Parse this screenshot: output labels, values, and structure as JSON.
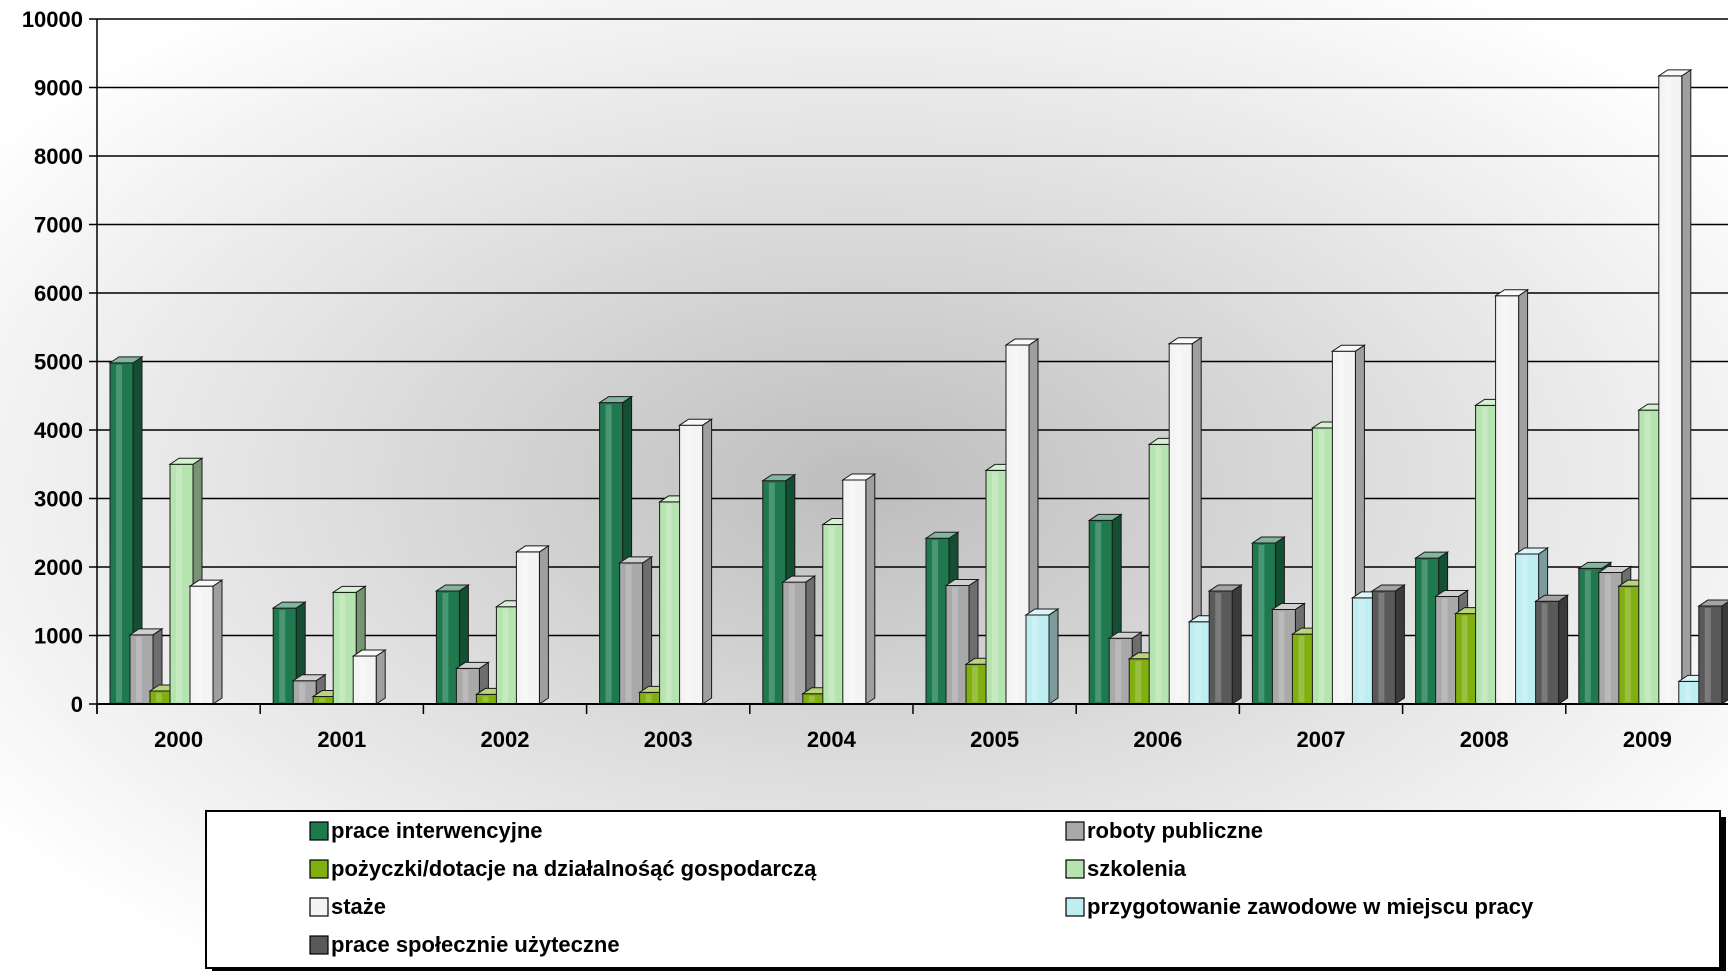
{
  "chart_data": {
    "type": "bar",
    "title": "",
    "xlabel": "",
    "ylabel": "",
    "ylim": [
      0,
      10000
    ],
    "yticks": [
      0,
      1000,
      2000,
      3000,
      4000,
      5000,
      6000,
      7000,
      8000,
      9000,
      10000
    ],
    "grid": true,
    "legend_position": "bottom",
    "categories": [
      "2000",
      "2001",
      "2002",
      "2003",
      "2004",
      "2005",
      "2006",
      "2007",
      "2008",
      "2009"
    ],
    "series": [
      {
        "name": "prace interwencyjne",
        "color": "#1e7a4e",
        "values": [
          4980,
          1400,
          1650,
          4400,
          3260,
          2420,
          2680,
          2350,
          2130,
          1980
        ]
      },
      {
        "name": "roboty publiczne",
        "color": "#a9a9a9",
        "values": [
          1010,
          340,
          520,
          2060,
          1780,
          1730,
          960,
          1380,
          1570,
          1920
        ]
      },
      {
        "name": "pożyczki/dotacje na działalnośąć gospodarczą",
        "color": "#7fb010",
        "values": [
          190,
          110,
          140,
          170,
          150,
          580,
          660,
          1020,
          1320,
          1720
        ]
      },
      {
        "name": "szkolenia",
        "color": "#b6e4b0",
        "values": [
          3500,
          1630,
          1420,
          2950,
          2620,
          3410,
          3790,
          4030,
          4360,
          4290
        ]
      },
      {
        "name": "staże",
        "color": "#f4f4f4",
        "values": [
          1720,
          700,
          2220,
          4070,
          3270,
          5240,
          5260,
          5150,
          5960,
          9170
        ]
      },
      {
        "name": "przygotowanie zawodowe w miejscu pracy",
        "color": "#bfeef2",
        "values": [
          null,
          null,
          null,
          null,
          null,
          1300,
          1200,
          1550,
          2190,
          330
        ]
      },
      {
        "name": "prace społecznie użyteczne",
        "color": "#595959",
        "values": [
          null,
          null,
          null,
          null,
          null,
          null,
          1650,
          1650,
          1500,
          1430
        ]
      }
    ]
  }
}
